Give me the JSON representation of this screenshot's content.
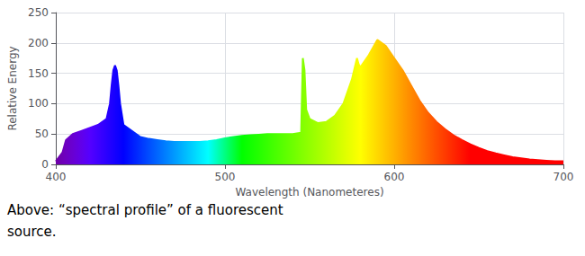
{
  "chart_data": {
    "type": "area",
    "xlabel": "Wavelength (Nanometeres)",
    "ylabel": "Relative Energy",
    "annotations": [
      "Above: “spectral profile” of a fluorescent",
      "source."
    ],
    "x": [
      400,
      404,
      405,
      406,
      410,
      415,
      420,
      425,
      430,
      432,
      433,
      434,
      435,
      436,
      437,
      438,
      440,
      445,
      450,
      455,
      460,
      465,
      470,
      475,
      480,
      485,
      490,
      495,
      500,
      505,
      510,
      515,
      520,
      525,
      530,
      535,
      540,
      545,
      546,
      547,
      548,
      550,
      555,
      560,
      565,
      570,
      575,
      578,
      579,
      580,
      585,
      590,
      595,
      600,
      605,
      610,
      615,
      620,
      625,
      630,
      635,
      640,
      645,
      650,
      655,
      660,
      665,
      670,
      675,
      680,
      685,
      690,
      695,
      700
    ],
    "values": [
      5,
      20,
      30,
      40,
      50,
      55,
      60,
      65,
      75,
      100,
      130,
      155,
      163,
      155,
      130,
      100,
      65,
      55,
      45,
      42,
      40,
      38,
      37,
      37,
      37,
      37,
      38,
      40,
      43,
      45,
      47,
      48,
      49,
      50,
      50,
      50,
      50,
      52,
      175,
      155,
      90,
      75,
      68,
      70,
      80,
      100,
      140,
      175,
      165,
      160,
      180,
      205,
      195,
      175,
      155,
      130,
      105,
      85,
      70,
      58,
      48,
      40,
      33,
      27,
      22,
      18,
      15,
      12,
      10,
      8,
      7,
      6,
      5,
      5
    ],
    "xlim": [
      400,
      700
    ],
    "ylim": [
      0,
      250
    ],
    "xticks": [
      400,
      500,
      600,
      700
    ],
    "yticks": [
      0,
      50,
      100,
      150,
      200,
      250
    ],
    "grid": true
  }
}
